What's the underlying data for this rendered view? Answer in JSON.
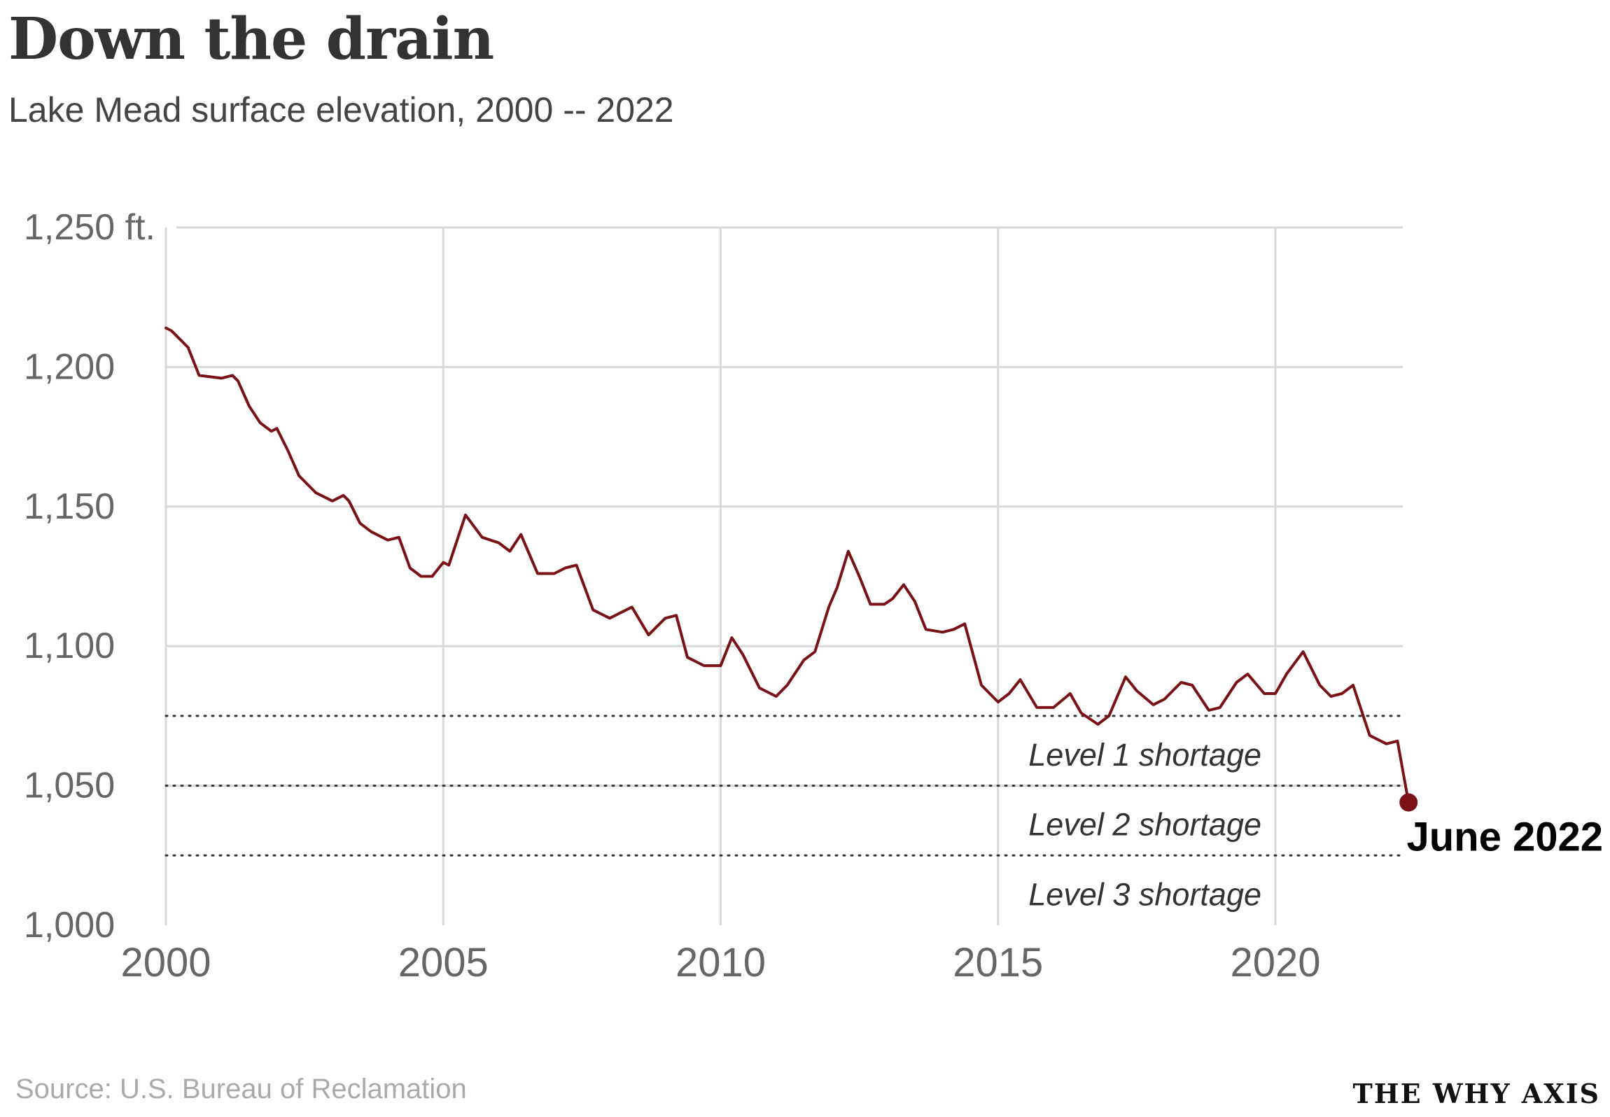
{
  "header": {
    "title": "Down the drain",
    "subtitle": "Lake Mead surface elevation, 2000 -- 2022"
  },
  "footer": {
    "source": "Source: U.S. Bureau of Reclamation",
    "brand": "THE WHY AXIS"
  },
  "colors": {
    "line": "#7a1116",
    "grid": "#d9d9d9",
    "text": "#555555"
  },
  "chart_data": {
    "type": "line",
    "title": "Down the drain",
    "subtitle": "Lake Mead surface elevation, 2000 -- 2022",
    "xlabel": "",
    "ylabel": "",
    "xlim": [
      2000,
      2022.5
    ],
    "ylim": [
      1000,
      1250
    ],
    "y_ticks": [
      {
        "value": 1000,
        "label": "1,000"
      },
      {
        "value": 1050,
        "label": "1,050"
      },
      {
        "value": 1100,
        "label": "1,100"
      },
      {
        "value": 1150,
        "label": "1,150"
      },
      {
        "value": 1200,
        "label": "1,200"
      },
      {
        "value": 1250,
        "label": "1,250 ft."
      }
    ],
    "x_ticks": [
      {
        "value": 2000,
        "label": "2000"
      },
      {
        "value": 2005,
        "label": "2005"
      },
      {
        "value": 2010,
        "label": "2010"
      },
      {
        "value": 2015,
        "label": "2015"
      },
      {
        "value": 2020,
        "label": "2020"
      }
    ],
    "grid": true,
    "thresholds": [
      {
        "value": 1075,
        "label": "Level 1 shortage"
      },
      {
        "value": 1050,
        "label": "Level 2 shortage"
      },
      {
        "value": 1025,
        "label": "Level 3 shortage"
      }
    ],
    "series": [
      {
        "name": "Lake Mead surface elevation",
        "x": [
          2000.0,
          2000.1,
          2000.3,
          2000.4,
          2000.6,
          2001.0,
          2001.2,
          2001.3,
          2001.5,
          2001.7,
          2001.9,
          2002.0,
          2002.2,
          2002.4,
          2002.7,
          2003.0,
          2003.2,
          2003.3,
          2003.5,
          2003.7,
          2004.0,
          2004.2,
          2004.4,
          2004.6,
          2004.8,
          2005.0,
          2005.1,
          2005.4,
          2005.7,
          2006.0,
          2006.2,
          2006.4,
          2006.7,
          2007.0,
          2007.2,
          2007.4,
          2007.7,
          2008.0,
          2008.2,
          2008.4,
          2008.7,
          2009.0,
          2009.2,
          2009.4,
          2009.7,
          2010.0,
          2010.2,
          2010.4,
          2010.7,
          2011.0,
          2011.2,
          2011.5,
          2011.7,
          2011.95,
          2012.1,
          2012.3,
          2012.5,
          2012.7,
          2012.95,
          2013.1,
          2013.3,
          2013.5,
          2013.7,
          2014.0,
          2014.2,
          2014.4,
          2014.7,
          2015.0,
          2015.2,
          2015.4,
          2015.7,
          2016.0,
          2016.3,
          2016.5,
          2016.8,
          2017.0,
          2017.3,
          2017.5,
          2017.8,
          2018.0,
          2018.3,
          2018.5,
          2018.8,
          2019.0,
          2019.3,
          2019.5,
          2019.8,
          2020.0,
          2020.2,
          2020.5,
          2020.8,
          2021.0,
          2021.2,
          2021.4,
          2021.7,
          2021.9,
          2022.0,
          2022.2,
          2022.4
        ],
        "values": [
          1214,
          1213,
          1209,
          1207,
          1197,
          1196,
          1197,
          1195,
          1186,
          1180,
          1177,
          1178,
          1170,
          1161,
          1155,
          1152,
          1154,
          1152,
          1144,
          1141,
          1138,
          1139,
          1128,
          1125,
          1125,
          1130,
          1129,
          1147,
          1139,
          1137,
          1134,
          1140,
          1126,
          1126,
          1128,
          1129,
          1113,
          1110,
          1112,
          1114,
          1104,
          1110,
          1111,
          1096,
          1093,
          1093,
          1103,
          1097,
          1085,
          1082,
          1086,
          1095,
          1098,
          1114,
          1121,
          1134,
          1125,
          1115,
          1115,
          1117,
          1122,
          1116,
          1106,
          1105,
          1106,
          1108,
          1086,
          1080,
          1083,
          1088,
          1078,
          1078,
          1083,
          1076,
          1072,
          1075,
          1089,
          1084,
          1079,
          1081,
          1087,
          1086,
          1077,
          1078,
          1087,
          1090,
          1083,
          1083,
          1090,
          1098,
          1086,
          1082,
          1083,
          1086,
          1068,
          1066,
          1065,
          1066,
          1044
        ]
      }
    ],
    "endpoint": {
      "x": 2022.4,
      "value": 1044,
      "label": "June 2022"
    }
  }
}
